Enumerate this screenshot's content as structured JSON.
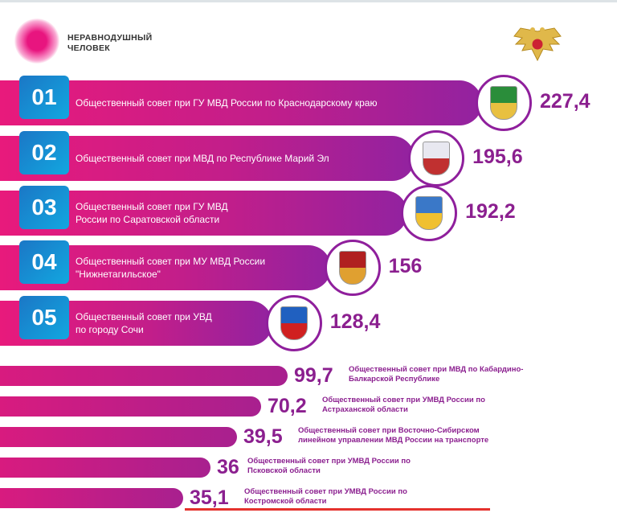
{
  "brand": {
    "line1": "НЕРАВНОДУШНЫЙ",
    "line2": "ЧЕЛОВЕК"
  },
  "colors": {
    "pink": "#e81a7c",
    "purple": "#9222a0",
    "badge": "#1b77c6",
    "value": "#8b1f8f",
    "underline": "#e5322d"
  },
  "chart_data": {
    "type": "bar",
    "title": "",
    "categories": [
      "Общественный совет при ГУ МВД России по Краснодарскому краю",
      "Общественный совет при МВД по Республике Марий Эл",
      "Общественный совет при ГУ МВД России по Саратовской области",
      "Общественный совет при МУ МВД России \"Нижнетагильское\"",
      "Общественный совет при УВД по городу Сочи",
      "Общественный совет при МВД по Кабардино-Балкарской Республике",
      "Общественный совет при УМВД России по Астраханской области",
      "Общественный совет при Восточно-Сибирском линейном управлении МВД России на транспорте",
      "Общественный совет при УМВД России по Псковской области",
      "Общественный совет при УМВД России по Костромской области"
    ],
    "ranks": [
      "01",
      "02",
      "03",
      "04",
      "05"
    ],
    "value_labels": [
      "227,4",
      "195,6",
      "192,2",
      "156",
      "128,4",
      "99,7",
      "70,2",
      "39,5",
      "36",
      "35,1"
    ],
    "values": [
      227.4,
      195.6,
      192.2,
      156,
      128.4,
      99.7,
      70.2,
      39.5,
      36,
      35.1
    ],
    "label_lines": [
      [
        "Общественный совет при ГУ МВД России по Краснодарскому краю"
      ],
      [
        "Общественный совет при МВД по Республике Марий Эл"
      ],
      [
        "Общественный совет при ГУ МВД",
        "России по Саратовской области"
      ],
      [
        "Общественный совет при МУ МВД России",
        "\"Нижнетагильское\""
      ],
      [
        "Общественный совет при УВД",
        "по городу Сочи"
      ],
      [
        "Общественный совет при МВД по Кабардино-",
        "Балкарской Республике"
      ],
      [
        "Общественный совет при УМВД России по",
        "Астраханской области"
      ],
      [
        "Общественный совет при Восточно-Сибирском",
        "линейном управлении МВД России на транспорте"
      ],
      [
        "Общественный совет при УМВД России по",
        "Псковской области"
      ],
      [
        "Общественный совет при УМВД России по",
        "Костромской области"
      ]
    ],
    "emblems": [
      "krasnodar-coat-of-arms",
      "mari-el-coat-of-arms",
      "saratov-coat-of-arms",
      "nizhny-tagil-coat-of-arms",
      "sochi-coat-of-arms"
    ]
  }
}
